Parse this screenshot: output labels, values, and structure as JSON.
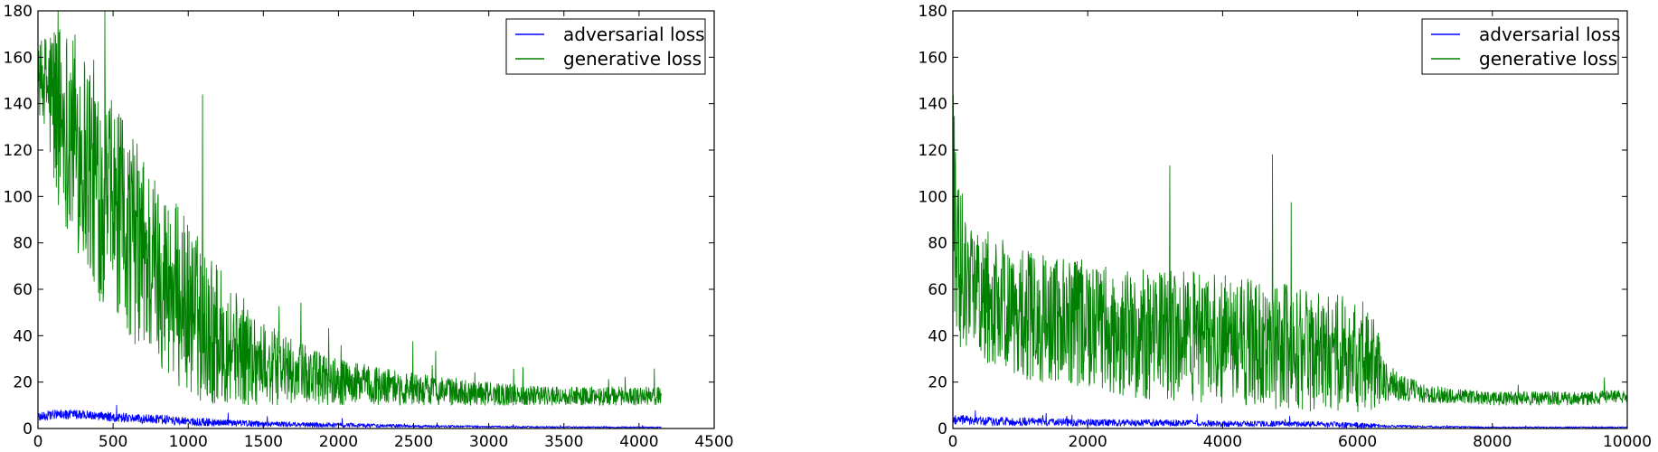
{
  "colors": {
    "adversarial": "#0000ff",
    "generative": "#008000",
    "axes": "#000000",
    "background": "#ffffff"
  },
  "chart_data": [
    {
      "type": "line",
      "xlim": [
        0,
        4500
      ],
      "ylim": [
        0,
        180
      ],
      "xticks": [
        0,
        500,
        1000,
        1500,
        2000,
        2500,
        3000,
        3500,
        4000,
        4500
      ],
      "yticks": [
        0,
        20,
        40,
        60,
        80,
        100,
        120,
        140,
        160,
        180
      ],
      "xticklabels": [
        "0",
        "500",
        "1000",
        "1500",
        "2000",
        "2500",
        "3000",
        "3500",
        "4000",
        "4500"
      ],
      "yticklabels": [
        "0",
        "20",
        "40",
        "60",
        "80",
        "100",
        "120",
        "140",
        "160",
        "180"
      ],
      "legend_position": "top-right",
      "grid": false,
      "series": [
        {
          "name": "adversarial loss",
          "color": "#0000ff",
          "x": [
            0,
            100,
            200,
            300,
            400,
            500,
            600,
            700,
            800,
            900,
            1000,
            1200,
            1500,
            2000,
            2500,
            3000,
            3500,
            4000,
            4150
          ],
          "y": [
            5,
            6,
            6,
            6,
            5.5,
            5,
            4.5,
            4,
            4,
            3.5,
            3,
            2.5,
            2,
            1.5,
            1,
            0.8,
            0.6,
            0.5,
            0.5
          ],
          "spread": [
            2,
            2,
            2,
            2,
            2,
            2,
            2,
            2,
            2,
            2,
            2,
            1.5,
            1.2,
            1,
            0.6,
            0.4,
            0.3,
            0.3,
            0.3
          ]
        },
        {
          "name": "generative loss",
          "color": "#008000",
          "x": [
            0,
            50,
            100,
            200,
            300,
            400,
            500,
            600,
            700,
            800,
            900,
            1000,
            1100,
            1200,
            1300,
            1400,
            1500,
            1700,
            2000,
            2500,
            3000,
            3500,
            4000,
            4150
          ],
          "y": [
            150,
            150,
            140,
            130,
            120,
            105,
            95,
            85,
            75,
            68,
            60,
            52,
            45,
            40,
            36,
            32,
            28,
            24,
            20,
            17,
            15,
            14,
            14,
            14
          ],
          "spread": [
            15,
            20,
            40,
            45,
            50,
            50,
            45,
            45,
            45,
            40,
            40,
            38,
            35,
            30,
            25,
            22,
            18,
            14,
            10,
            7,
            5,
            4,
            4,
            4
          ]
        }
      ]
    },
    {
      "type": "line",
      "xlim": [
        0,
        10000
      ],
      "ylim": [
        0,
        180
      ],
      "xticks": [
        0,
        2000,
        4000,
        6000,
        8000,
        10000
      ],
      "yticks": [
        0,
        20,
        40,
        60,
        80,
        100,
        120,
        140,
        160,
        180
      ],
      "xticklabels": [
        "0",
        "2000",
        "4000",
        "6000",
        "8000",
        "10000"
      ],
      "yticklabels": [
        "0",
        "20",
        "40",
        "60",
        "80",
        "100",
        "120",
        "140",
        "160",
        "180"
      ],
      "legend_position": "top-right",
      "grid": false,
      "series": [
        {
          "name": "adversarial loss",
          "color": "#0000ff",
          "x": [
            0,
            500,
            1000,
            2000,
            3000,
            4000,
            5000,
            6000,
            6500,
            7000,
            8000,
            9000,
            10000
          ],
          "y": [
            4,
            3,
            3,
            2.5,
            2.5,
            2,
            2,
            1.5,
            1,
            0.8,
            0.5,
            0.5,
            0.5
          ],
          "spread": [
            2,
            2,
            1.8,
            1.5,
            1.5,
            1.3,
            1.2,
            1.2,
            0.6,
            0.4,
            0.3,
            0.3,
            0.3
          ]
        },
        {
          "name": "generative loss",
          "color": "#008000",
          "x": [
            0,
            100,
            300,
            600,
            1000,
            1500,
            2000,
            2500,
            3000,
            3500,
            4000,
            4500,
            5000,
            5500,
            6000,
            6200,
            6400,
            6600,
            7000,
            7500,
            8000,
            8500,
            9000,
            9500,
            10000
          ],
          "y": [
            100,
            70,
            60,
            55,
            50,
            45,
            45,
            42,
            40,
            40,
            38,
            37,
            35,
            33,
            32,
            30,
            22,
            18,
            15,
            14,
            13,
            13,
            13,
            13,
            14
          ],
          "spread": [
            50,
            35,
            30,
            28,
            28,
            28,
            28,
            28,
            28,
            28,
            28,
            28,
            27,
            26,
            25,
            22,
            10,
            6,
            4,
            3,
            3,
            3,
            3,
            3,
            3
          ]
        }
      ]
    }
  ]
}
